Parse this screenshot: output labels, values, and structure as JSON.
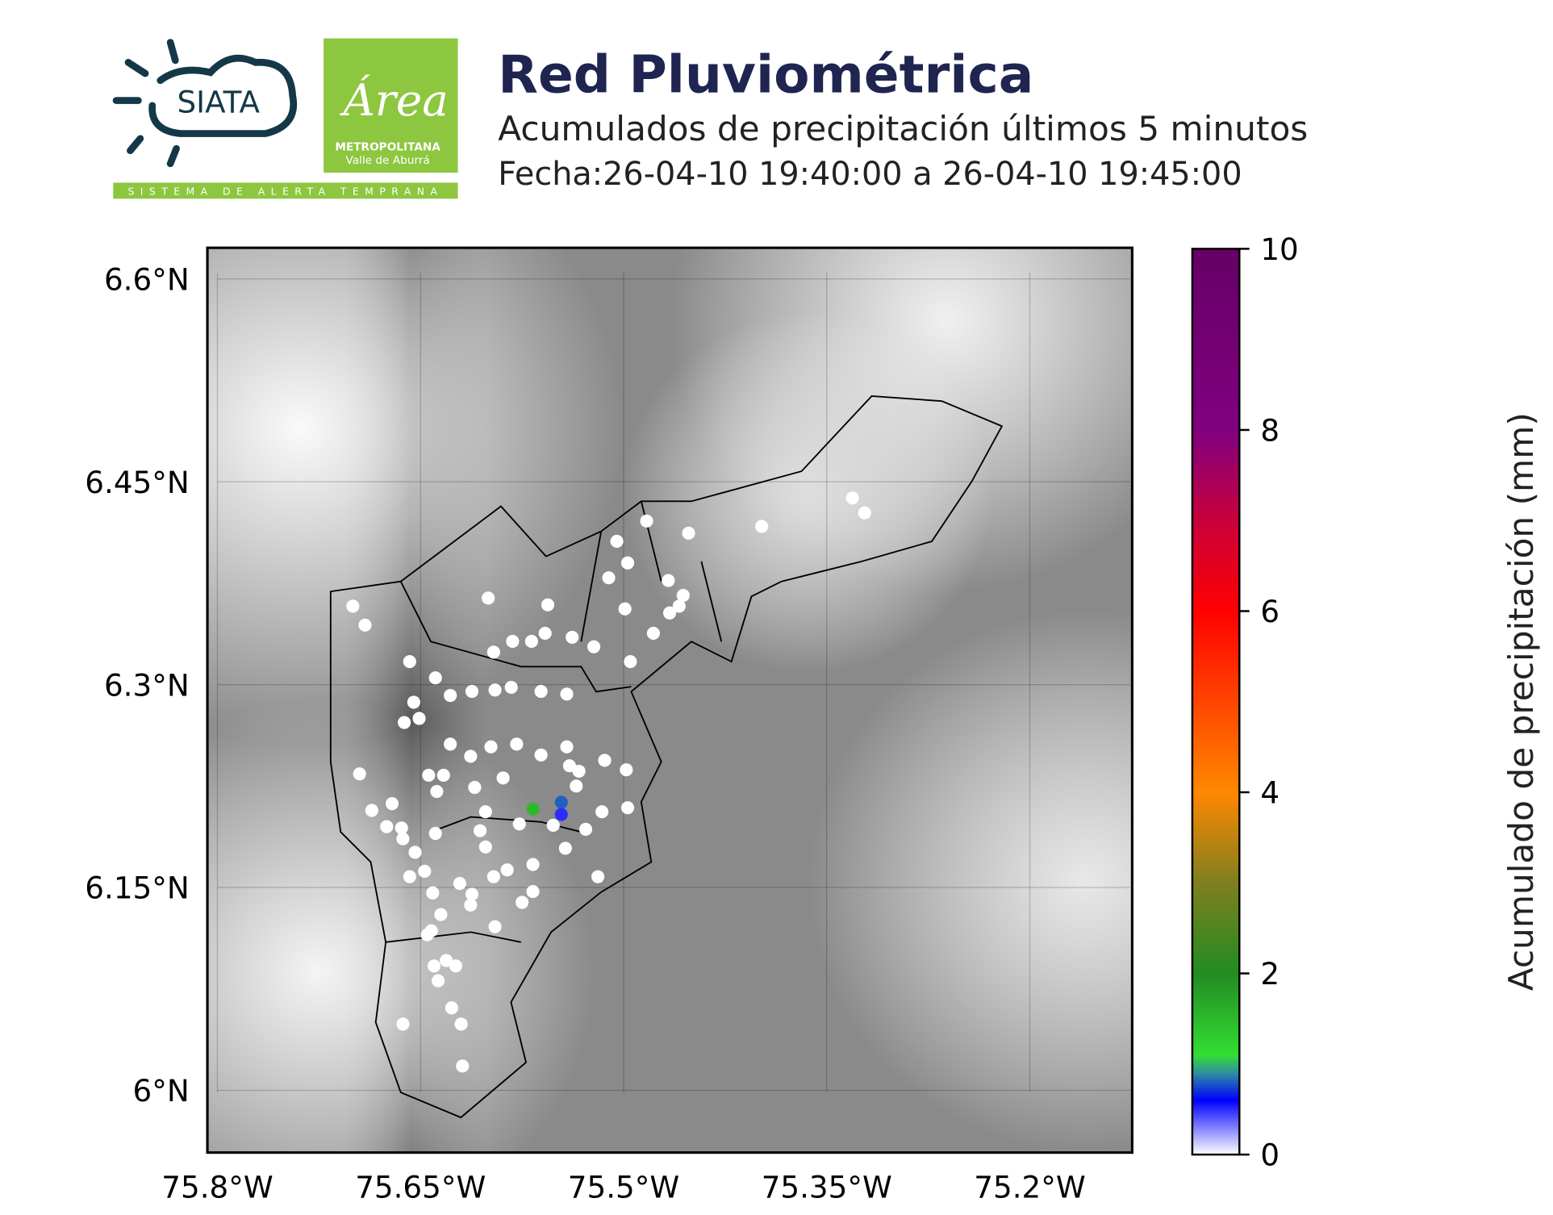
{
  "header": {
    "logo_text": "SIATA",
    "area_script": "Área",
    "area_name": "METROPOLITANA",
    "area_region": "Valle de Aburrá",
    "tagline": "SISTEMA DE ALERTA TEMPRANA"
  },
  "chart_data": {
    "type": "scatter",
    "title": "Red Pluviométrica",
    "subtitle": "Acumulados de precipitación últimos 5 minutos",
    "date_range": "Fecha:26-04-10 19:40:00 a 26-04-10 19:45:00",
    "xlim": [
      -75.8074,
      -75.1244
    ],
    "ylim": [
      5.954,
      6.623
    ],
    "xticks": [
      {
        "value": -75.8,
        "label": "75.8°W"
      },
      {
        "value": -75.65,
        "label": "75.65°W"
      },
      {
        "value": -75.5,
        "label": "75.5°W"
      },
      {
        "value": -75.35,
        "label": "75.35°W"
      },
      {
        "value": -75.2,
        "label": "75.2°W"
      }
    ],
    "yticks": [
      {
        "value": 6.6,
        "label": "6.6°N"
      },
      {
        "value": 6.45,
        "label": "6.45°N"
      },
      {
        "value": 6.3,
        "label": "6.3°N"
      },
      {
        "value": 6.15,
        "label": "6.15°N"
      },
      {
        "value": 6.0,
        "label": "6°N"
      }
    ],
    "grid": true,
    "x": [
      -75.7,
      -75.691,
      -75.6,
      -75.556,
      -75.658,
      -75.639,
      -75.483,
      -75.452,
      -75.398,
      -75.331,
      -75.322,
      -75.505,
      -75.497,
      -75.511,
      -75.499,
      -75.467,
      -75.456,
      -75.459,
      -75.466,
      -75.478,
      -75.495,
      -75.522,
      -75.538,
      -75.558,
      -75.568,
      -75.582,
      -75.596,
      -75.595,
      -75.583,
      -75.561,
      -75.542,
      -75.612,
      -75.628,
      -75.655,
      -75.662,
      -75.651,
      -75.628,
      -75.613,
      -75.598,
      -75.579,
      -75.561,
      -75.542,
      -75.54,
      -75.533,
      -75.514,
      -75.498,
      -75.695,
      -75.644,
      -75.633,
      -75.638,
      -75.61,
      -75.589,
      -75.671,
      -75.686,
      -75.675,
      -75.664,
      -75.639,
      -75.602,
      -75.577,
      -75.552,
      -75.535,
      -75.516,
      -75.497,
      -75.528,
      -75.606,
      -75.602,
      -75.567,
      -75.543,
      -75.663,
      -75.654,
      -75.647,
      -75.658,
      -75.641,
      -75.621,
      -75.612,
      -75.596,
      -75.586,
      -75.567,
      -75.575,
      -75.519,
      -75.642,
      -75.645,
      -75.635,
      -75.613,
      -75.595,
      -75.64,
      -75.631,
      -75.624,
      -75.637,
      -75.627,
      -75.62,
      -75.663,
      -75.619,
      -75.567,
      -75.546,
      -75.546
    ],
    "y": [
      6.358,
      6.344,
      6.364,
      6.359,
      6.317,
      6.305,
      6.421,
      6.412,
      6.417,
      6.438,
      6.427,
      6.406,
      6.39,
      6.379,
      6.356,
      6.377,
      6.366,
      6.358,
      6.353,
      6.338,
      6.317,
      6.328,
      6.335,
      6.338,
      6.332,
      6.332,
      6.324,
      6.296,
      6.298,
      6.295,
      6.293,
      6.295,
      6.292,
      6.287,
      6.272,
      6.275,
      6.256,
      6.247,
      6.254,
      6.256,
      6.248,
      6.254,
      6.24,
      6.236,
      6.244,
      6.237,
      6.234,
      6.233,
      6.233,
      6.221,
      6.224,
      6.231,
      6.212,
      6.207,
      6.195,
      6.194,
      6.19,
      6.206,
      6.197,
      6.196,
      6.225,
      6.206,
      6.209,
      6.193,
      6.192,
      6.18,
      6.167,
      6.179,
      6.186,
      6.176,
      6.162,
      6.158,
      6.146,
      6.153,
      6.145,
      6.158,
      6.163,
      6.147,
      6.139,
      6.158,
      6.118,
      6.115,
      6.13,
      6.137,
      6.121,
      6.092,
      6.096,
      6.092,
      6.081,
      6.061,
      6.049,
      6.049,
      6.018,
      6.208,
      6.213,
      6.204
    ],
    "values": [
      0,
      0,
      0,
      0,
      0,
      0,
      0,
      0,
      0,
      0,
      0,
      0,
      0,
      0,
      0,
      0,
      0,
      0,
      0,
      0,
      0,
      0,
      0,
      0,
      0,
      0,
      0,
      0,
      0,
      0,
      0,
      0,
      0,
      0,
      0,
      0,
      0,
      0,
      0,
      0,
      0,
      0,
      0,
      0,
      0,
      0,
      0,
      0,
      0,
      0,
      0,
      0,
      0,
      0,
      0,
      0,
      0,
      0,
      0,
      0,
      0,
      0,
      0,
      0,
      0,
      0,
      0,
      0,
      0,
      0,
      0,
      0,
      0,
      0,
      0,
      0,
      0,
      0,
      0,
      0,
      0,
      0,
      0,
      0,
      0,
      0,
      0,
      0,
      0,
      0,
      0,
      0,
      0,
      1.5,
      0.8,
      0.5
    ],
    "colorbar": {
      "label": "Acumulado de precipitación (mm)",
      "lim": [
        0,
        10
      ],
      "ticks": [
        0,
        2,
        4,
        6,
        8,
        10
      ],
      "colors": [
        [
          0,
          "#ffffff"
        ],
        [
          0.6,
          "#0000ff"
        ],
        [
          0.9,
          "#2f8f9f"
        ],
        [
          1.1,
          "#33dd33"
        ],
        [
          2,
          "#228b22"
        ],
        [
          3,
          "#7f7f1f"
        ],
        [
          4,
          "#ff8800"
        ],
        [
          6,
          "#ff0000"
        ],
        [
          7,
          "#c8003c"
        ],
        [
          8,
          "#800080"
        ],
        [
          10,
          "#660066"
        ]
      ]
    }
  }
}
